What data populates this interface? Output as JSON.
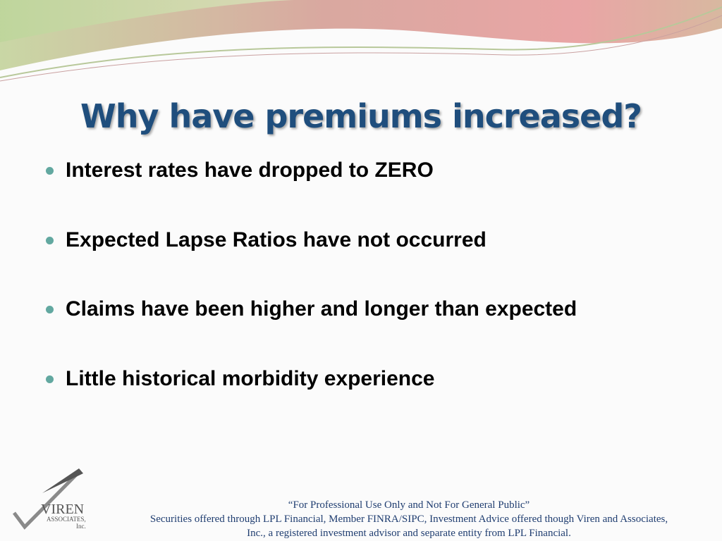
{
  "slide": {
    "title": "Why have premiums increased?",
    "bullets": [
      "Interest rates have dropped to ZERO",
      "Expected Lapse Ratios have not occurred",
      "Claims have been higher and longer than expected",
      "Little historical morbidity experience"
    ],
    "footer": [
      "“For Professional Use Only and Not For General Public”",
      "Securities offered through LPL Financial, Member FINRA/SIPC, Investment Advice offered though Viren and Associates,",
      "Inc., a registered investment advisor and separate entity from LPL Financial."
    ],
    "logo": {
      "name": "VIREN",
      "sub": "ASSOCIATES,",
      "inc": "Inc."
    }
  }
}
